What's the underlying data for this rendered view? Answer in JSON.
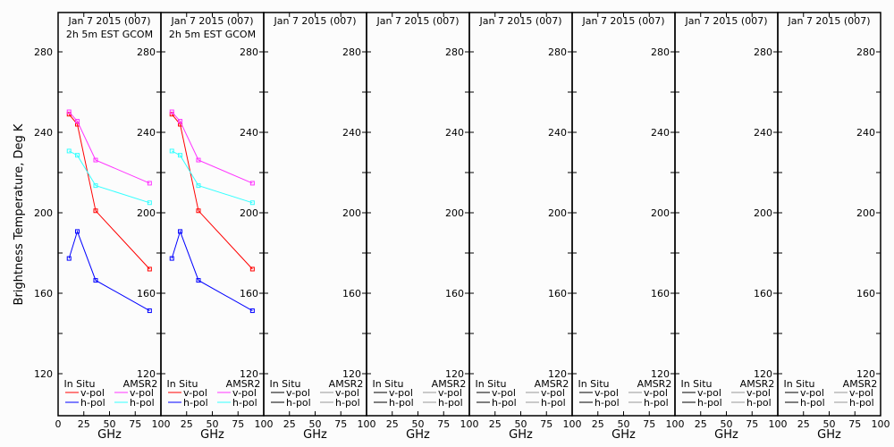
{
  "chart_data": {
    "type": "line",
    "ylabel": "Brightness Temperature, Deg K",
    "xlabel": "GHz",
    "xlim": [
      0,
      100
    ],
    "ylim": [
      110,
      296
    ],
    "xticks": [
      0,
      25,
      50,
      75,
      100
    ],
    "yticks": [
      120,
      160,
      200,
      240,
      280
    ],
    "legend": {
      "in_situ_title": "In Situ",
      "amsr2_title": "AMSR2",
      "vpol": "v-pol",
      "hpol": "h-pol"
    },
    "colors": {
      "insitu_v": "#ff0000",
      "insitu_h": "#0000ff",
      "amsr2_v": "#ff33ff",
      "amsr2_h": "#33ffff"
    },
    "panels": [
      {
        "title": "Jan 7 2015 (007)",
        "subtitle": "2h 5m EST GCOM",
        "series": [
          {
            "name": "In Situ v-pol",
            "key": "insitu_v",
            "x": [
              10.65,
              18.7,
              36.5,
              89
            ],
            "y": [
              249.0,
              244.0,
              201.0,
              172.0
            ]
          },
          {
            "name": "In Situ h-pol",
            "key": "insitu_h",
            "x": [
              10.65,
              18.7,
              36.5,
              89
            ],
            "y": [
              177.3,
              190.7,
              166.4,
              151.3
            ]
          },
          {
            "name": "AMSR2 v-pol",
            "key": "amsr2_v",
            "x": [
              10.65,
              18.7,
              36.5,
              89
            ],
            "y": [
              250.2,
              245.5,
              226.2,
              214.7
            ]
          },
          {
            "name": "AMSR2 h-pol",
            "key": "amsr2_h",
            "x": [
              10.65,
              18.7,
              36.5,
              89
            ],
            "y": [
              230.7,
              228.6,
              213.5,
              205.0
            ]
          }
        ]
      },
      {
        "title": "Jan 7 2015 (007)",
        "subtitle": "2h 5m EST GCOM",
        "series": [
          {
            "name": "In Situ v-pol",
            "key": "insitu_v",
            "x": [
              10.65,
              18.7,
              36.5,
              89
            ],
            "y": [
              249.0,
              244.0,
              201.0,
              172.0
            ]
          },
          {
            "name": "In Situ h-pol",
            "key": "insitu_h",
            "x": [
              10.65,
              18.7,
              36.5,
              89
            ],
            "y": [
              177.3,
              190.7,
              166.4,
              151.3
            ]
          },
          {
            "name": "AMSR2 v-pol",
            "key": "amsr2_v",
            "x": [
              10.65,
              18.7,
              36.5,
              89
            ],
            "y": [
              250.2,
              245.5,
              226.2,
              214.7
            ]
          },
          {
            "name": "AMSR2 h-pol",
            "key": "amsr2_h",
            "x": [
              10.65,
              18.7,
              36.5,
              89
            ],
            "y": [
              230.7,
              228.6,
              213.5,
              205.0
            ]
          }
        ]
      },
      {
        "title": "Jan 7 2015 (007)",
        "series": []
      },
      {
        "title": "Jan 7 2015 (007)",
        "series": []
      },
      {
        "title": "Jan 7 2015 (007)",
        "series": []
      },
      {
        "title": "Jan 7 2015 (007)",
        "series": []
      },
      {
        "title": "Jan 7 2015 (007)",
        "series": []
      },
      {
        "title": "Jan 7 2015 (007)",
        "series": []
      }
    ]
  }
}
